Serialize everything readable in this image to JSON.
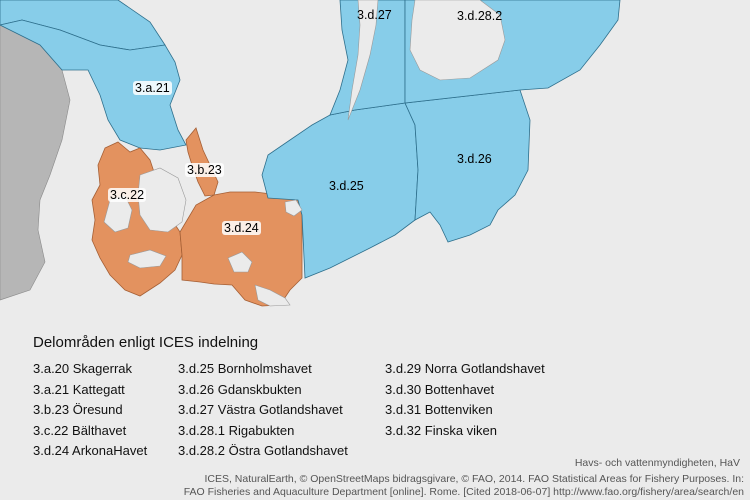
{
  "colors": {
    "sea": "#87cde9",
    "sea_border": "#2e6f8c",
    "highlight": "#e3925f",
    "highlight_border": "#a55f35",
    "land_outside": "#b6b6b6",
    "land": "#ebebeb"
  },
  "map": {
    "areas": [
      {
        "id": "3.a.20",
        "label": "3.a.20"
      },
      {
        "id": "3.a.21",
        "label": "3.a.21"
      },
      {
        "id": "3.b.23",
        "label": "3.b.23"
      },
      {
        "id": "3.c.22",
        "label": "3.c.22"
      },
      {
        "id": "3.d.24",
        "label": "3.d.24"
      },
      {
        "id": "3.d.25",
        "label": "3.d.25"
      },
      {
        "id": "3.d.26",
        "label": "3.d.26"
      },
      {
        "id": "3.d.27",
        "label": "3.d.27"
      },
      {
        "id": "3.d.28.2",
        "label": "3.d.28.2"
      }
    ]
  },
  "legend": {
    "title": "Delområden enligt ICES indelning",
    "columns": [
      [
        "3.a.20 Skagerrak",
        "3.a.21 Kattegatt",
        "3.b.23 Öresund",
        "3.c.22 Bälthavet",
        "3.d.24 ArkonaHavet"
      ],
      [
        "3.d.25 Bornholmshavet",
        "3.d.26 Gdanskbukten",
        "3.d.27 Västra Gotlandshavet",
        "3.d.28.1 Rigabukten",
        "3.d.28.2 Östra Gotlandshavet"
      ],
      [
        "3.d.29 Norra Gotlandshavet",
        "3.d.30 Bottenhavet",
        "3.d.31 Bottenviken",
        "3.d.32 Finska viken"
      ]
    ]
  },
  "credits": {
    "agency": "Havs- och vattenmyndigheten, HaV",
    "source_line1": "ICES, NaturalEarth, © OpenStreetMaps bidragsgivare, © FAO, 2014. FAO Statistical Areas for Fishery Purposes. In:",
    "source_line2": "FAO Fisheries and Aquaculture Department [online]. Rome. [Cited 2018-06-07] http://www.fao.org/fishery/area/search/en"
  }
}
